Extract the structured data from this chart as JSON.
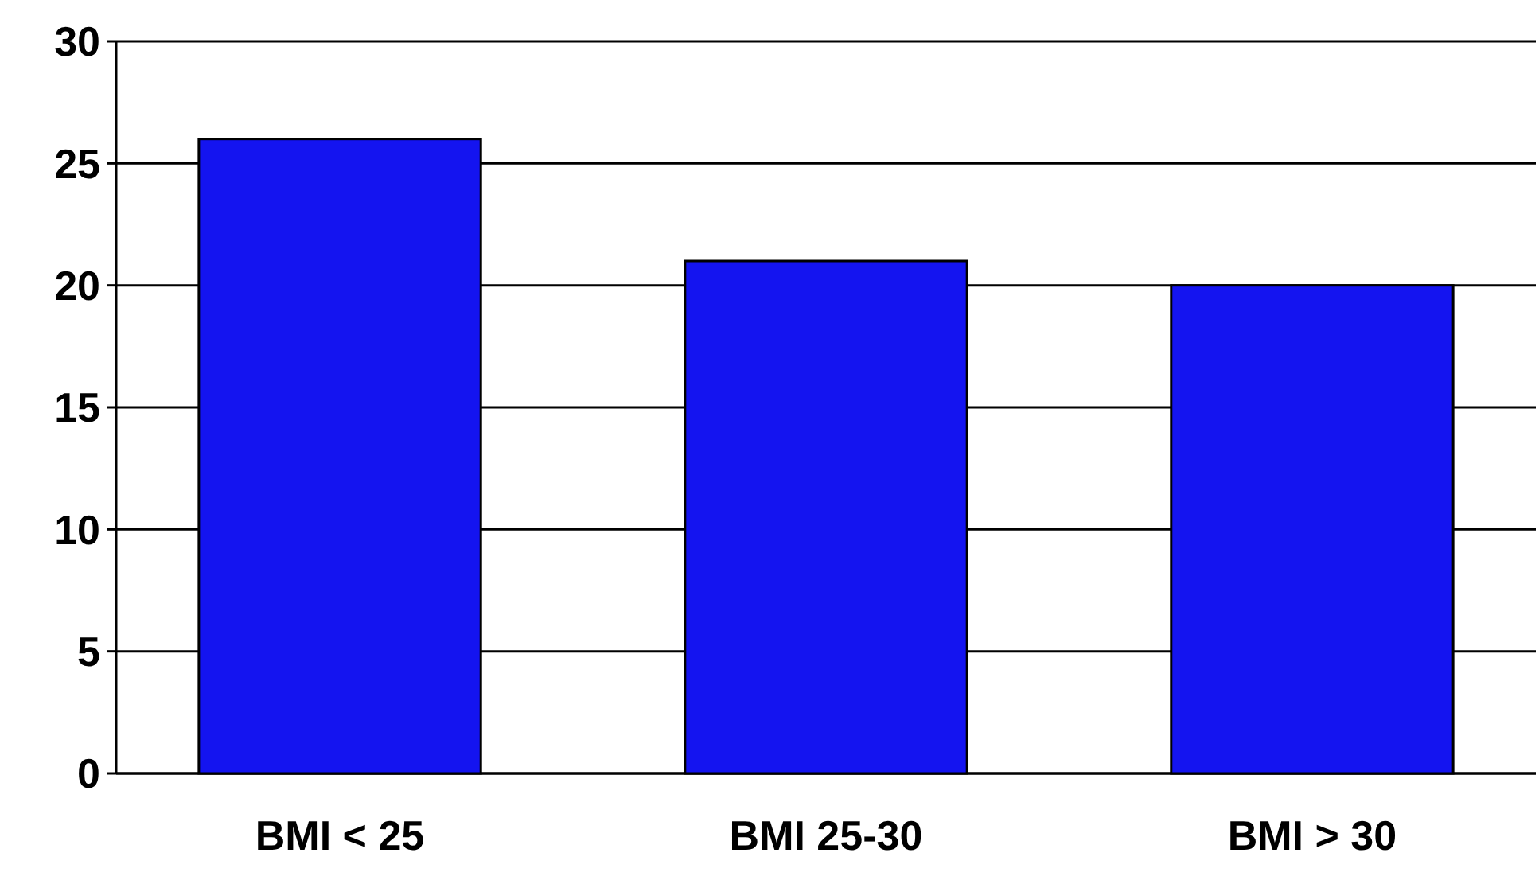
{
  "chart_data": {
    "type": "bar",
    "categories": [
      "BMI < 25",
      "BMI 25-30",
      "BMI > 30"
    ],
    "values": [
      26,
      21,
      20
    ],
    "color": "#1414f0",
    "ylim": [
      0,
      30
    ],
    "yticks": [
      0,
      5,
      10,
      15,
      20,
      25,
      30
    ],
    "grid": "y"
  }
}
